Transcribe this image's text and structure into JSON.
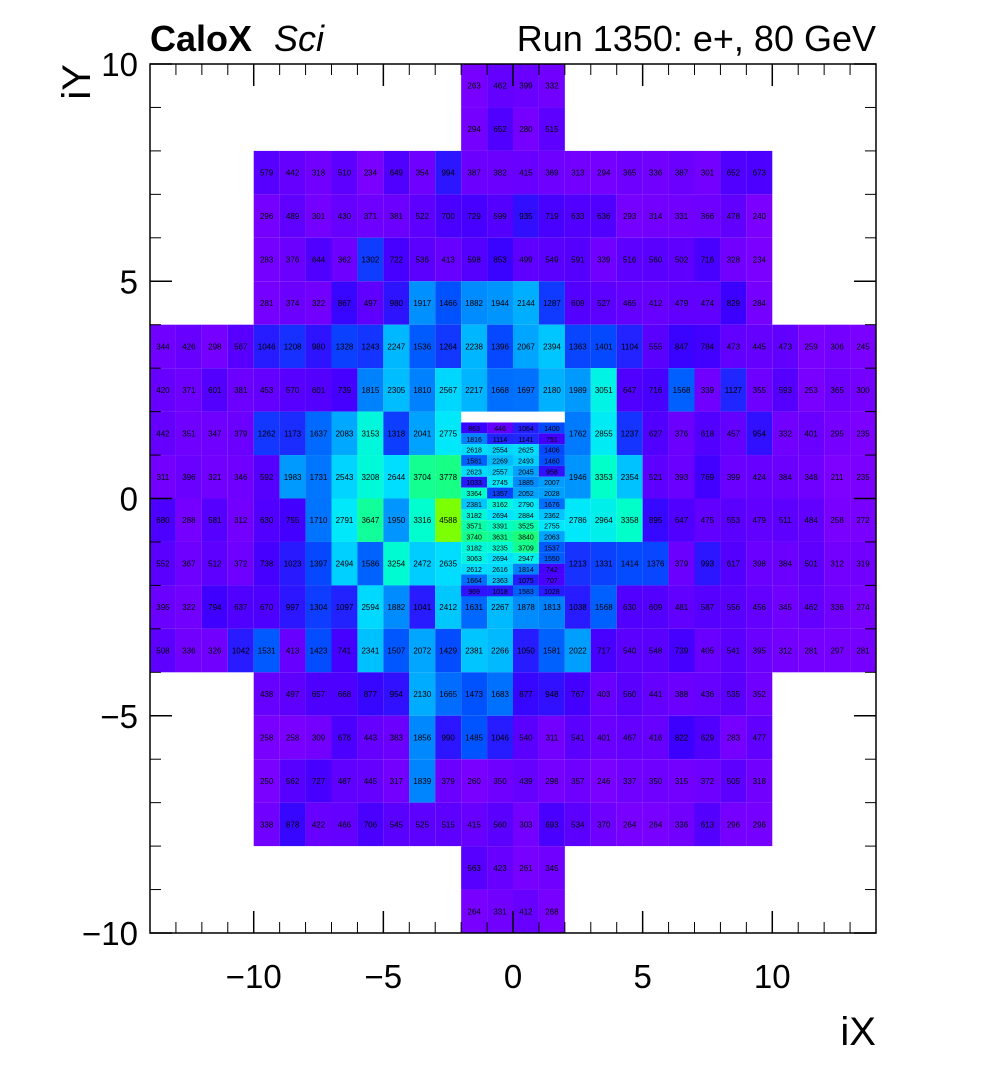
{
  "header": {
    "brand": "CaloX",
    "brand_suffix": "Sci",
    "run_label": "Run 1350: e+, 80 GeV"
  },
  "chart_data": {
    "type": "heatmap",
    "xlabel": "iX",
    "ylabel": "iY",
    "xlim": [
      -14,
      14
    ],
    "ylim": [
      -10,
      10
    ],
    "x_ticks": [
      -10,
      -5,
      0,
      5,
      10
    ],
    "x_tick_labels": [
      "−10",
      "−5",
      "0",
      "5",
      "10"
    ],
    "y_ticks": [
      -10,
      -5,
      0,
      5,
      10
    ],
    "y_tick_labels": [
      "−10",
      "−5",
      "0",
      "5",
      "10"
    ],
    "color_scale": [
      "#7f00ff",
      "#3c00ff",
      "#0050ff",
      "#00a8ff",
      "#00e5ff",
      "#00ffcc",
      "#22ff66",
      "#7dff00"
    ],
    "z_range": [
      200,
      4600
    ],
    "grid": false,
    "coarse_cell_size": 1,
    "fine_cell_size": 0.5,
    "coarse_rows": [
      {
        "y": 9,
        "x_start": -2,
        "values": [
          263,
          462,
          399,
          332
        ]
      },
      {
        "y": 8,
        "x_start": -2,
        "values": [
          294,
          652,
          280,
          515
        ]
      },
      {
        "y": 7,
        "x_start": -10,
        "values": [
          579,
          442,
          318,
          510,
          234,
          649,
          354,
          994,
          387,
          382,
          415,
          369,
          313,
          294,
          365,
          336,
          387,
          301,
          652,
          673
        ]
      },
      {
        "y": 6,
        "x_start": -10,
        "values": [
          296,
          489,
          301,
          430,
          371,
          381,
          522,
          700,
          729,
          599,
          935,
          719,
          633,
          636,
          293,
          314,
          331,
          366,
          478,
          240
        ]
      },
      {
        "y": 5,
        "x_start": -10,
        "values": [
          283,
          376,
          644,
          362,
          1302,
          722,
          536,
          413,
          598,
          853,
          499,
          549,
          591,
          339,
          516,
          560,
          502,
          716,
          328,
          234
        ]
      },
      {
        "y": 4,
        "x_start": -10,
        "values": [
          281,
          374,
          322,
          867,
          497,
          980,
          1917,
          1466,
          1882,
          1944,
          2144,
          1287,
          609,
          527,
          465,
          412,
          479,
          474,
          829,
          284
        ]
      },
      {
        "y": 3,
        "x_start": -14,
        "values": [
          344,
          426,
          298,
          567,
          1046,
          1208,
          980,
          1328,
          1243,
          2247,
          1536,
          1264,
          2238,
          1396,
          2067,
          2394,
          1363,
          1401,
          1104,
          555,
          847,
          784,
          473,
          445,
          473,
          259,
          306,
          245
        ]
      },
      {
        "y": 2,
        "x_start": -14,
        "values": [
          420,
          371,
          601,
          381,
          453,
          570,
          601,
          739,
          1815,
          2305,
          1810,
          2567,
          2217,
          1668,
          1697,
          2180,
          1989,
          3051,
          647,
          716,
          1568,
          339,
          1127,
          355,
          593,
          253,
          365,
          300
        ]
      },
      {
        "y": 1,
        "x_start": -14,
        "values": [
          442,
          351,
          347,
          379,
          1262,
          1173,
          1637,
          2083,
          3153,
          1318,
          2041,
          2775,
          null,
          null,
          null,
          null,
          1762,
          2855,
          1237,
          627,
          376,
          618,
          457,
          954,
          332,
          401,
          295,
          235
        ]
      },
      {
        "y": 0,
        "x_start": -14,
        "values": [
          311,
          396,
          321,
          346,
          592,
          1983,
          1731,
          2543,
          3208,
          2644,
          3704,
          3778,
          null,
          null,
          null,
          null,
          1946,
          3353,
          2354,
          521,
          393,
          769,
          399,
          424,
          384,
          348,
          211,
          235
        ]
      },
      {
        "y": -1,
        "x_start": -14,
        "values": [
          680,
          288,
          581,
          312,
          630,
          755,
          1710,
          2791,
          3647,
          1950,
          3316,
          4588,
          null,
          null,
          null,
          null,
          2786,
          2964,
          3358,
          895,
          647,
          475,
          553,
          479,
          511,
          484,
          258,
          272
        ]
      },
      {
        "y": -2,
        "x_start": -14,
        "values": [
          552,
          367,
          512,
          372,
          738,
          1023,
          1397,
          2494,
          1586,
          3254,
          2472,
          2635,
          null,
          null,
          null,
          null,
          1213,
          1331,
          1414,
          1376,
          379,
          993,
          617,
          398,
          384,
          501,
          312,
          319
        ]
      },
      {
        "y": -3,
        "x_start": -14,
        "values": [
          395,
          322,
          794,
          637,
          670,
          997,
          1304,
          1097,
          2594,
          1882,
          1041,
          2412,
          1631,
          2267,
          1878,
          1813,
          1038,
          1568,
          630,
          609,
          481,
          587,
          556,
          456,
          345,
          462,
          336,
          274
        ]
      },
      {
        "y": -4,
        "x_start": -14,
        "values": [
          508,
          336,
          326,
          1042,
          1531,
          413,
          1423,
          741,
          2341,
          1507,
          2072,
          1429,
          2381,
          2266,
          1050,
          1581,
          2022,
          717,
          540,
          548,
          739,
          405,
          541,
          395,
          312,
          281,
          297,
          281
        ]
      },
      {
        "y": -5,
        "x_start": -10,
        "values": [
          438,
          497,
          657,
          668,
          877,
          954,
          2130,
          1665,
          1473,
          1683,
          877,
          948,
          767,
          403,
          560,
          441,
          388,
          436,
          535,
          352
        ]
      },
      {
        "y": -6,
        "x_start": -10,
        "values": [
          258,
          258,
          309,
          676,
          443,
          383,
          1856,
          990,
          1485,
          1046,
          540,
          311,
          541,
          401,
          467,
          416,
          822,
          629,
          283,
          477
        ]
      },
      {
        "y": -7,
        "x_start": -10,
        "values": [
          250,
          562,
          727,
          487,
          445,
          317,
          1839,
          379,
          260,
          350,
          439,
          298,
          357,
          246,
          337,
          350,
          315,
          372,
          505,
          318
        ]
      },
      {
        "y": -8,
        "x_start": -10,
        "values": [
          338,
          878,
          422,
          466,
          706,
          545,
          525,
          515,
          415,
          560,
          303,
          693,
          534,
          370,
          264,
          264,
          336,
          613,
          296,
          296
        ]
      },
      {
        "y": -9,
        "x_start": -2,
        "values": [
          563,
          423,
          261,
          345
        ]
      },
      {
        "y": -10,
        "x_start": -2,
        "values": [
          264,
          331,
          412,
          268
        ]
      }
    ],
    "fine_rows": [
      {
        "y": 1.5,
        "values": [
          863,
          446,
          1064,
          1400
        ]
      },
      {
        "y": 1.25,
        "values": [
          1816,
          1114,
          1141,
          751
        ]
      },
      {
        "y": 1.0,
        "values": [
          2618,
          2554,
          2625,
          1406
        ]
      },
      {
        "y": 0.75,
        "values": [
          1581,
          2269,
          2493,
          1460
        ]
      },
      {
        "y": 0.5,
        "values": [
          2623,
          2557,
          2045,
          958
        ]
      },
      {
        "y": 0.25,
        "values": [
          1033,
          2745,
          1885,
          2007
        ]
      },
      {
        "y": 0.0,
        "values": [
          3364,
          1357,
          2052,
          2028
        ]
      },
      {
        "y": -0.25,
        "values": [
          2381,
          3162,
          2790,
          1676
        ]
      },
      {
        "y": -0.5,
        "values": [
          3182,
          2694,
          2884,
          2362
        ]
      },
      {
        "y": -0.75,
        "values": [
          3571,
          3391,
          3525,
          2755
        ]
      },
      {
        "y": -1.0,
        "values": [
          3740,
          3631,
          3840,
          2063
        ]
      },
      {
        "y": -1.25,
        "values": [
          3182,
          3235,
          3709,
          1537
        ]
      },
      {
        "y": -1.5,
        "values": [
          3063,
          2694,
          2947,
          1550
        ]
      },
      {
        "y": -1.75,
        "values": [
          2612,
          2616,
          1814,
          742
        ]
      },
      {
        "y": -2.0,
        "values": [
          1664,
          2363,
          1075,
          707
        ]
      },
      {
        "y": -2.25,
        "values": [
          969,
          1018,
          1583,
          1028
        ]
      }
    ]
  }
}
